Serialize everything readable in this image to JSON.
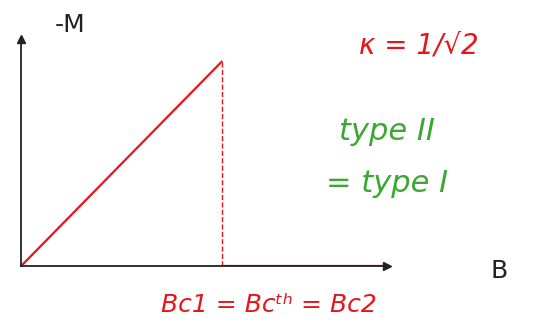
{
  "chart_data": {
    "type": "line",
    "x_label": "B",
    "y_label": "-M",
    "x": [
      0,
      1,
      1,
      1.8
    ],
    "values": [
      0,
      1,
      0,
      0
    ],
    "color": "#e8141c",
    "xlim": [
      0,
      1.825
    ],
    "ylim": [
      0,
      1.11
    ],
    "xticks": [],
    "yticks": [],
    "tick_labels": false,
    "grid": false,
    "annotations": [
      {
        "text": "κ = 1/√2",
        "color": "#e8141c"
      },
      {
        "text": "type II",
        "color": "#3aa832"
      },
      {
        "text": "= type I",
        "color": "#3aa832"
      },
      {
        "text": "Bc1 = Bcᵗʰ = Bc2",
        "color": "#e8141c"
      }
    ]
  }
}
